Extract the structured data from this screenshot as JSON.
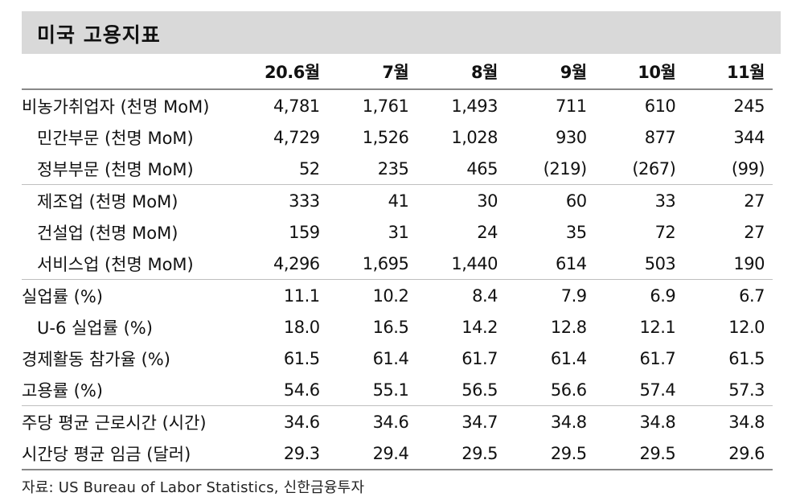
{
  "title": "미국 고용지표",
  "table": {
    "columns": [
      "",
      "20.6월",
      "7월",
      "8월",
      "9월",
      "10월",
      "11월"
    ],
    "rows": [
      {
        "label": "비농가취업자 (천명 MoM)",
        "values": [
          "4,781",
          "1,761",
          "1,493",
          "711",
          "610",
          "245"
        ]
      },
      {
        "label": "민간부문 (천명 MoM)",
        "values": [
          "4,729",
          "1,526",
          "1,028",
          "930",
          "877",
          "344"
        ]
      },
      {
        "label": "정부부문 (천명 MoM)",
        "values": [
          "52",
          "235",
          "465",
          "(219)",
          "(267)",
          "(99)"
        ]
      },
      {
        "label": "제조업 (천명 MoM)",
        "values": [
          "333",
          "41",
          "30",
          "60",
          "33",
          "27"
        ]
      },
      {
        "label": "건설업 (천명 MoM)",
        "values": [
          "159",
          "31",
          "24",
          "35",
          "72",
          "27"
        ]
      },
      {
        "label": "서비스업 (천명 MoM)",
        "values": [
          "4,296",
          "1,695",
          "1,440",
          "614",
          "503",
          "190"
        ]
      },
      {
        "label": "실업률 (%)",
        "values": [
          "11.1",
          "10.2",
          "8.4",
          "7.9",
          "6.9",
          "6.7"
        ]
      },
      {
        "label": "U-6 실업률 (%)",
        "values": [
          "18.0",
          "16.5",
          "14.2",
          "12.8",
          "12.1",
          "12.0"
        ]
      },
      {
        "label": "경제활동 참가율 (%)",
        "values": [
          "61.5",
          "61.4",
          "61.7",
          "61.4",
          "61.7",
          "61.5"
        ]
      },
      {
        "label": "고용률 (%)",
        "values": [
          "54.6",
          "55.1",
          "56.5",
          "56.6",
          "57.4",
          "57.3"
        ]
      },
      {
        "label": "주당 평균 근로시간 (시간)",
        "values": [
          "34.6",
          "34.6",
          "34.7",
          "34.8",
          "34.8",
          "34.8"
        ]
      },
      {
        "label": "시간당 평균 임금 (달러)",
        "values": [
          "29.3",
          "29.4",
          "29.5",
          "29.5",
          "29.5",
          "29.6"
        ]
      }
    ]
  },
  "source": "자료: US Bureau of Labor Statistics, 신한금융투자"
}
